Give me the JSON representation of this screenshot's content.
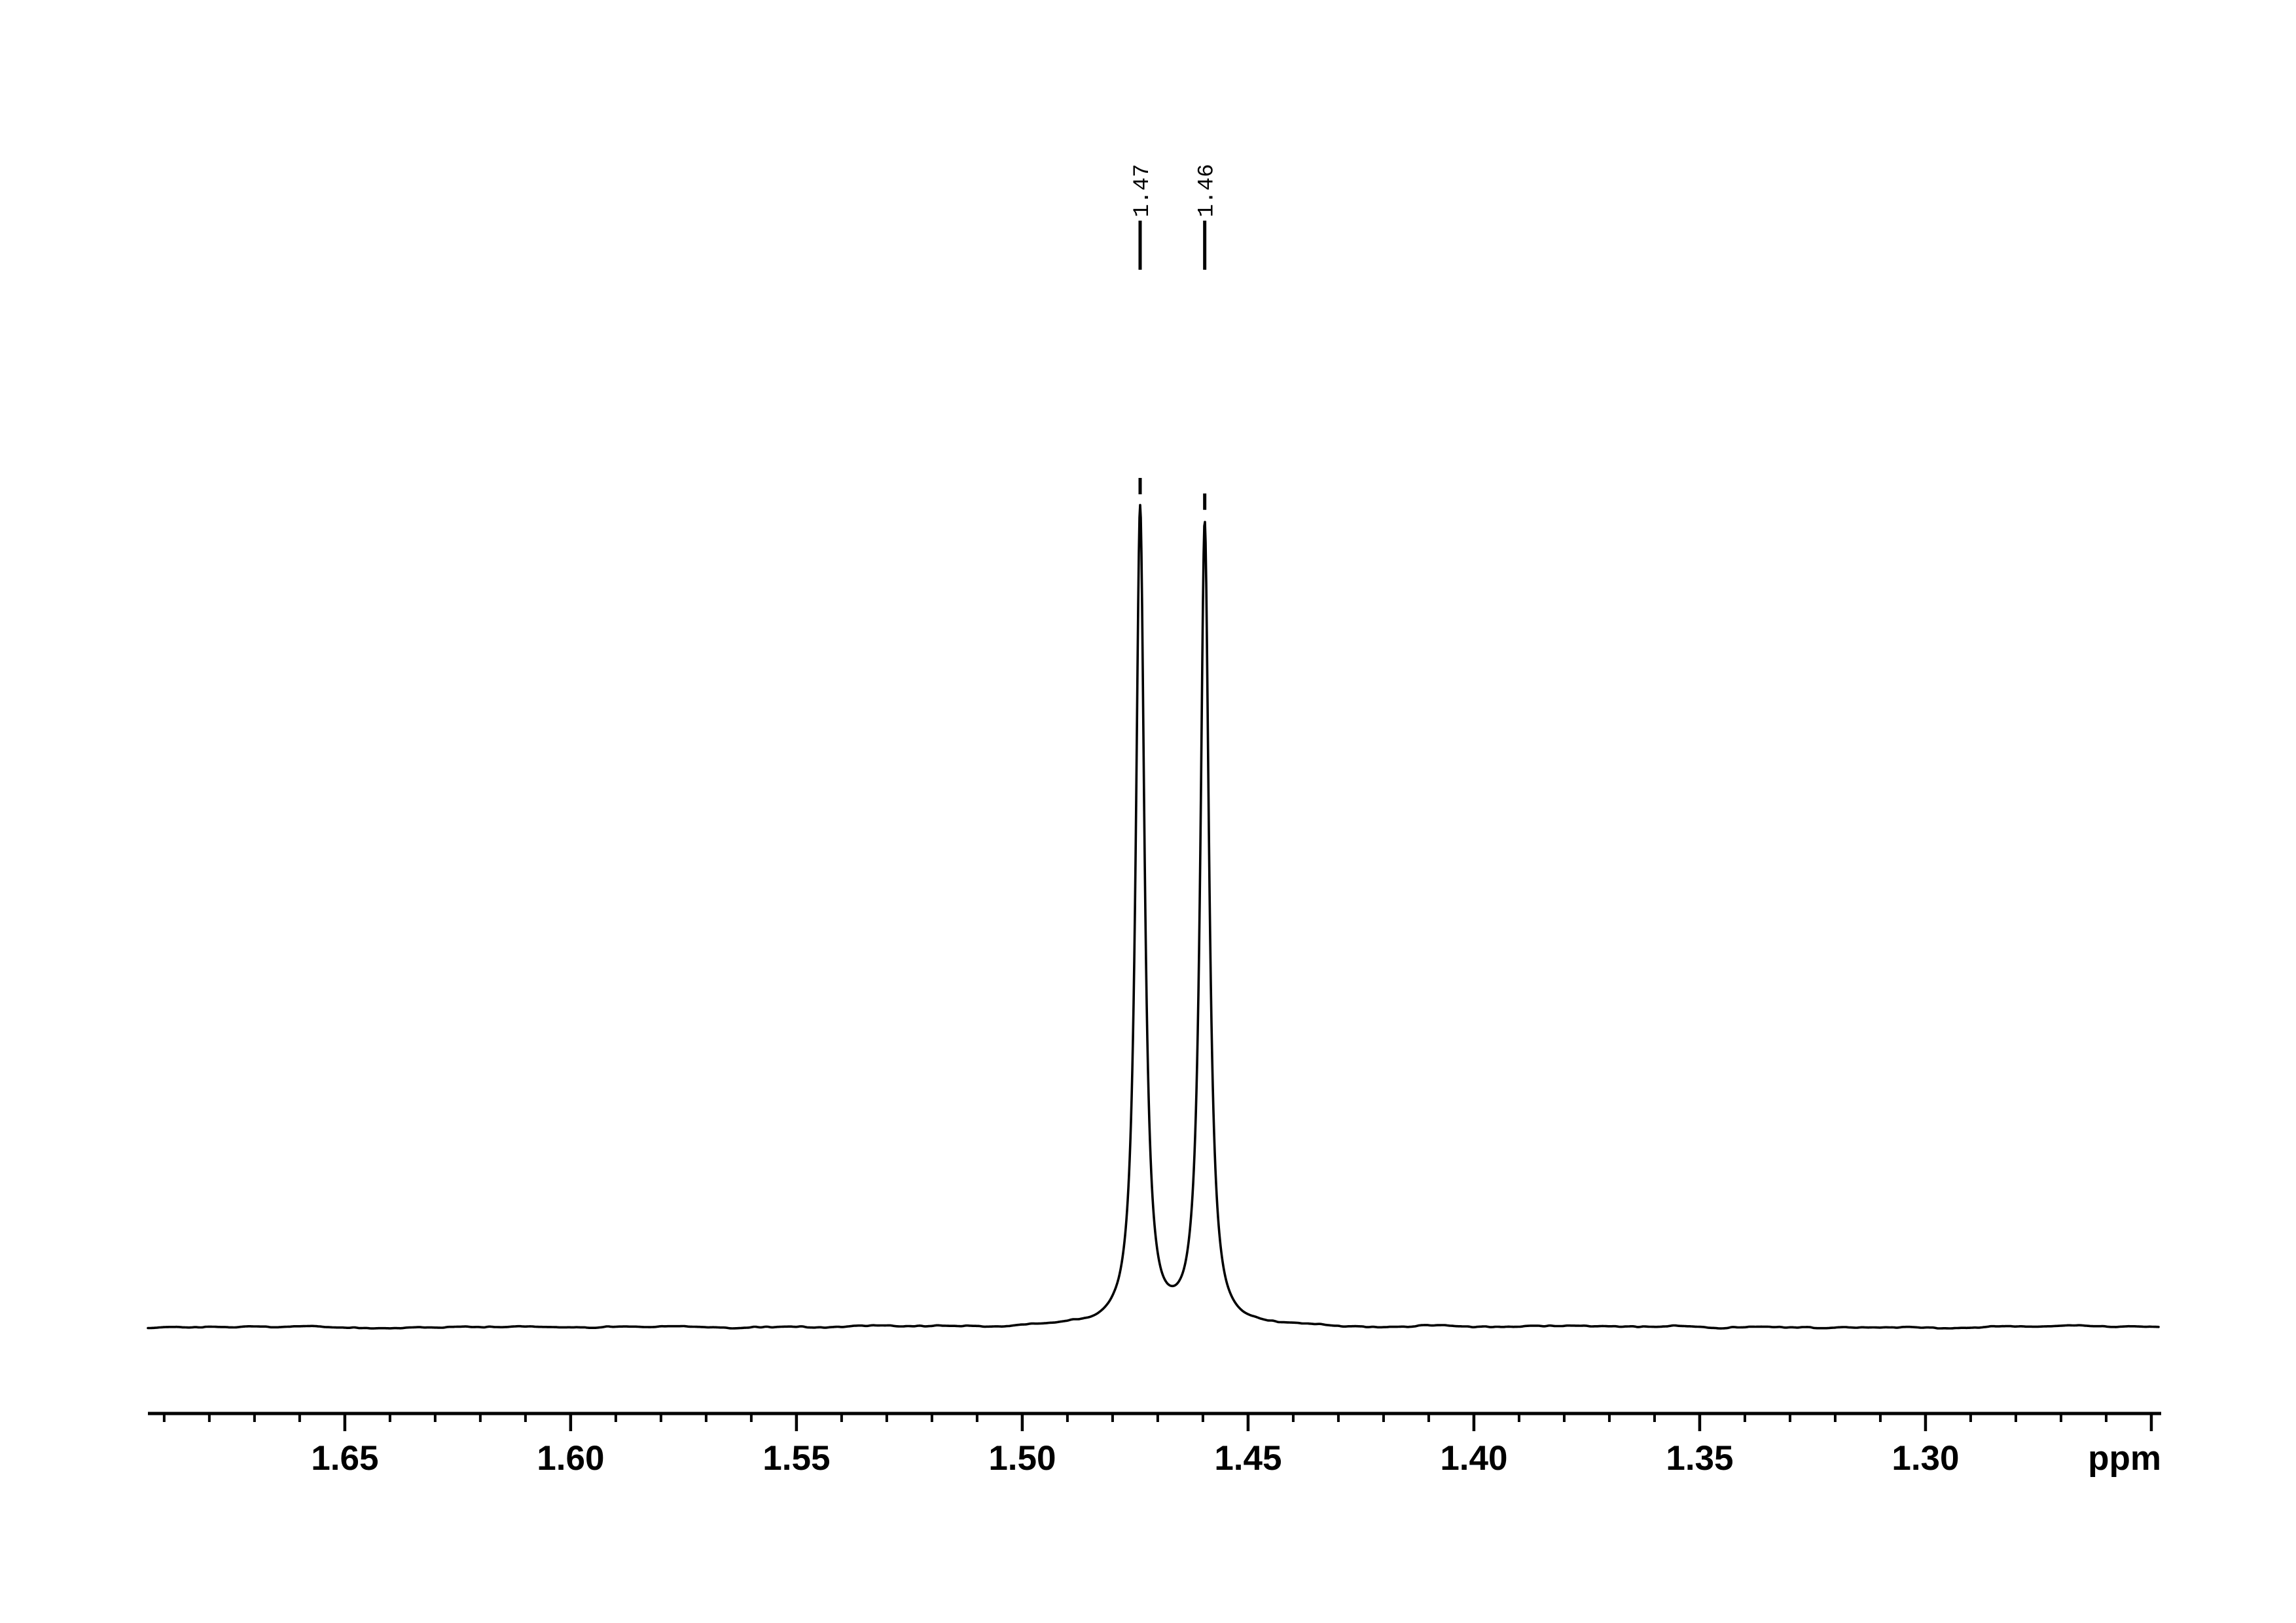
{
  "page": {
    "background_color": "#ffffff",
    "ink_color": "#000000"
  },
  "chart_data": {
    "type": "line",
    "description": "1H NMR spectrum region with two sharp peaks (doublet) and flat noisy baseline",
    "title": "",
    "xlabel": "ppm",
    "ylabel": "",
    "grid": false,
    "legend": false,
    "x_axis": {
      "unit_label": "ppm",
      "direction": "decreasing",
      "range_left_ppm": 1.6936,
      "range_right_ppm": 1.2484,
      "minor_tick_step_ppm": 0.01,
      "minor_tick_min_ppm": 1.25,
      "minor_tick_max_ppm": 1.69,
      "major_ticks": [
        {
          "ppm": 1.65,
          "label": "1.65"
        },
        {
          "ppm": 1.6,
          "label": "1.60"
        },
        {
          "ppm": 1.55,
          "label": "1.55"
        },
        {
          "ppm": 1.5,
          "label": "1.50"
        },
        {
          "ppm": 1.45,
          "label": "1.45"
        },
        {
          "ppm": 1.4,
          "label": "1.40"
        },
        {
          "ppm": 1.35,
          "label": "1.35"
        },
        {
          "ppm": 1.3,
          "label": "1.30"
        },
        {
          "ppm": 1.25,
          "label": ""
        }
      ]
    },
    "y_axis": {
      "shown": false
    },
    "peaks": [
      {
        "ppm": 1.4739,
        "label": "1.47",
        "intensity": 1.0
      },
      {
        "ppm": 1.4596,
        "label": "1.46",
        "intensity": 0.981
      }
    ],
    "lineshape": {
      "model": "lorentzian",
      "hwhm_ppm": 0.00116
    },
    "noise": {
      "relative_amplitude": 0.0018,
      "seed": 11
    }
  }
}
